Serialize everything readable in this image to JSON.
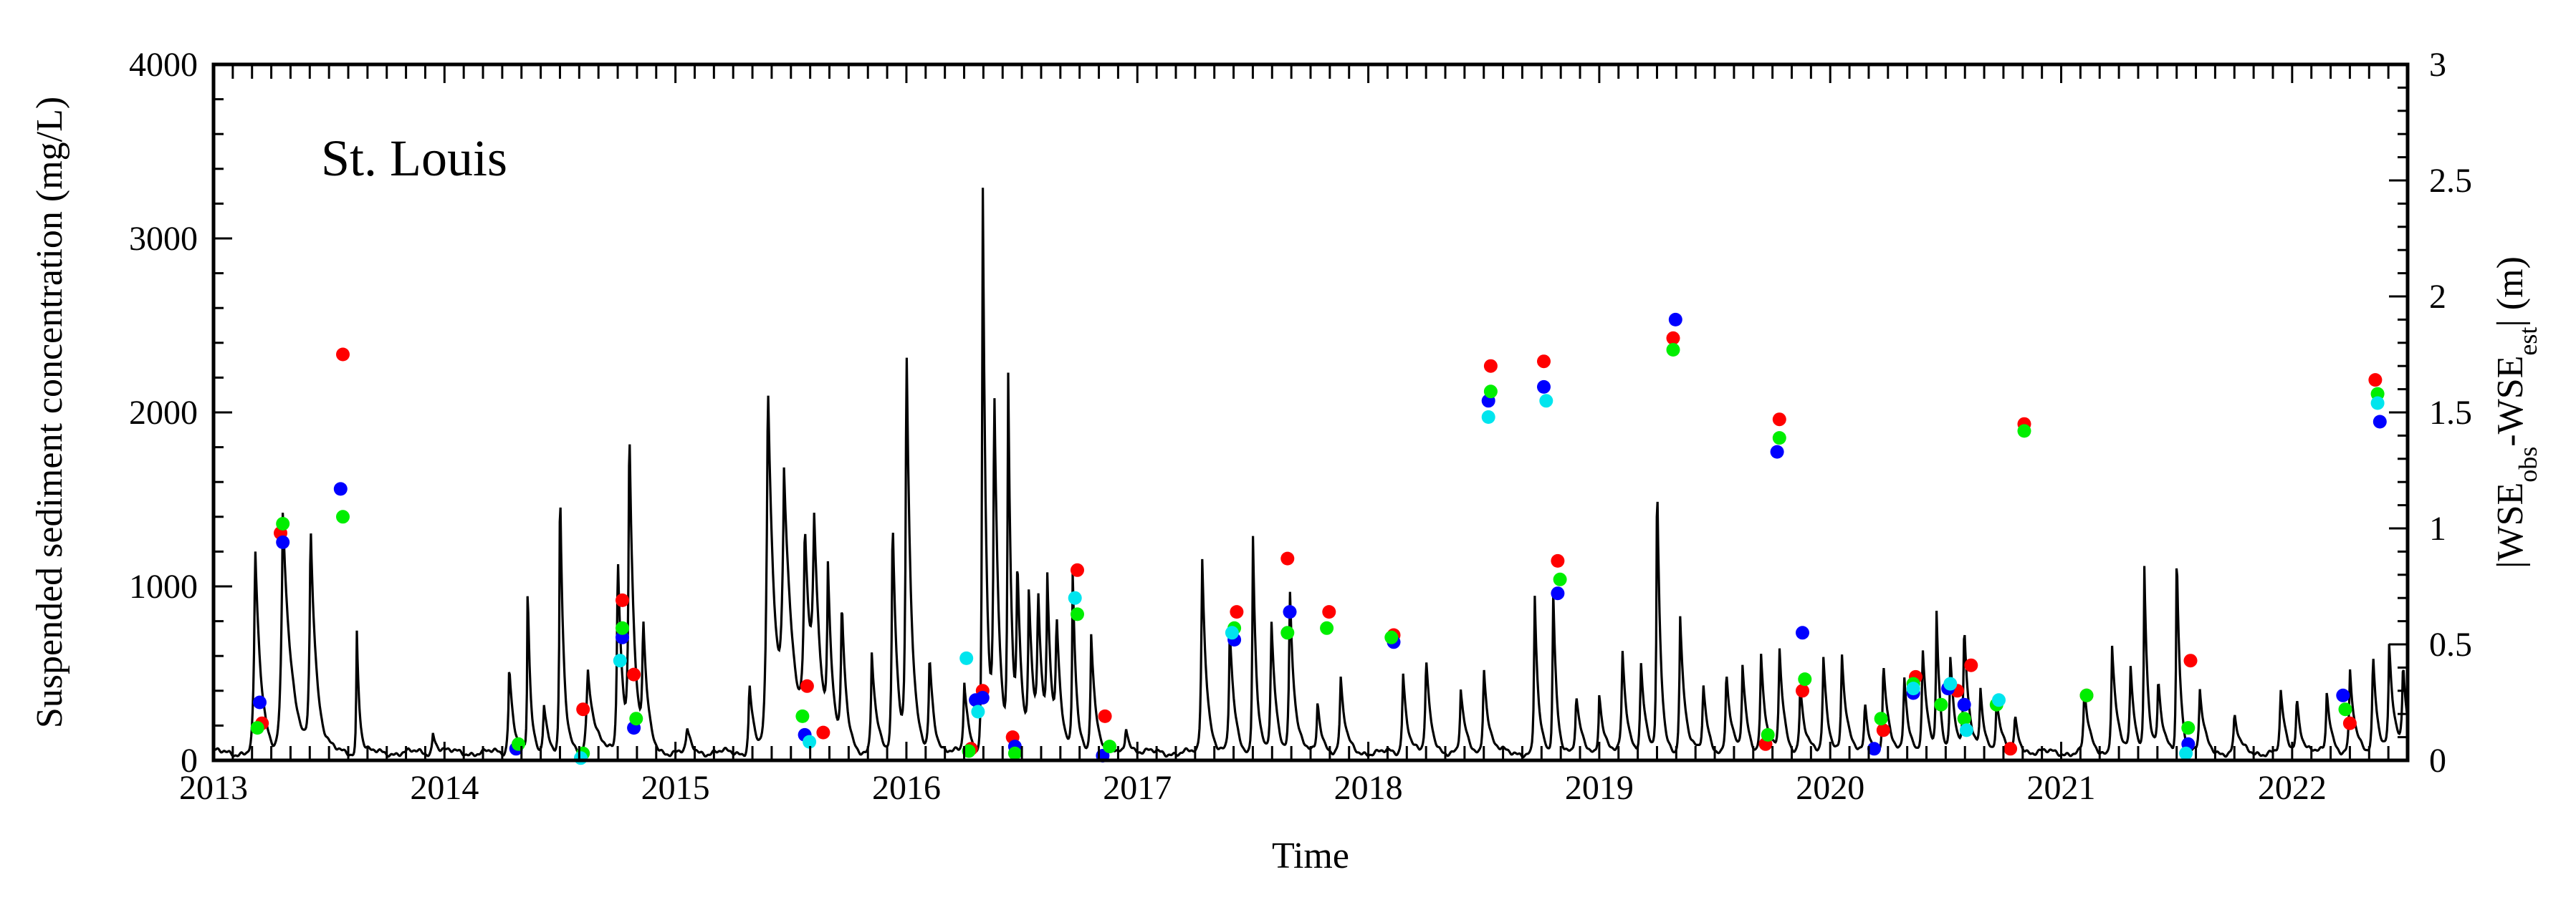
{
  "chart_data": {
    "type": "line",
    "title": "",
    "annotation": "St. Louis",
    "xlabel": "Time",
    "ylabel_left": "Suspended sediment concentration (mg/L)",
    "ylabel_right_parts": [
      "|WSE",
      "obs",
      "-WSE",
      "est",
      "| (m)"
    ],
    "xlim": [
      2013.0,
      2022.5
    ],
    "ylim_left": [
      0,
      4000
    ],
    "ylim_right": [
      0,
      3
    ],
    "x_ticks": [
      2013,
      2014,
      2015,
      2016,
      2017,
      2018,
      2019,
      2020,
      2021,
      2022
    ],
    "x_tick_labels": [
      "2013",
      "2014",
      "2015",
      "2016",
      "2017",
      "2018",
      "2019",
      "2020",
      "2021",
      "2022"
    ],
    "y_left_ticks": [
      0,
      1000,
      2000,
      3000,
      4000
    ],
    "y_left_tick_labels": [
      "0",
      "1000",
      "2000",
      "3000",
      "4000"
    ],
    "y_right_ticks": [
      0,
      0.5,
      1,
      1.5,
      2,
      2.5,
      3
    ],
    "y_right_tick_labels": [
      "0",
      "0.5",
      "1",
      "1.5",
      "2",
      "2.5",
      "3"
    ],
    "grid": false,
    "colors": {
      "line": "#000000",
      "red": "#ff0000",
      "blue": "#0000ff",
      "green": "#00ee00",
      "cyan": "#00e5ee"
    },
    "ssc_series": {
      "peaks": [
        [
          2013.18,
          1190,
          0.025
        ],
        [
          2013.3,
          1400,
          0.035
        ],
        [
          2013.42,
          1310,
          0.025
        ],
        [
          2013.62,
          730,
          0.012
        ],
        [
          2013.95,
          120,
          0.02
        ],
        [
          2014.28,
          520,
          0.02
        ],
        [
          2014.36,
          980,
          0.012
        ],
        [
          2014.43,
          300,
          0.02
        ],
        [
          2014.5,
          1610,
          0.015
        ],
        [
          2014.62,
          500,
          0.03
        ],
        [
          2014.75,
          1180,
          0.02
        ],
        [
          2014.8,
          1890,
          0.02
        ],
        [
          2014.86,
          700,
          0.02
        ],
        [
          2015.05,
          130,
          0.02
        ],
        [
          2015.32,
          420,
          0.02
        ],
        [
          2015.4,
          2160,
          0.03
        ],
        [
          2015.47,
          1450,
          0.04
        ],
        [
          2015.56,
          1150,
          0.03
        ],
        [
          2015.6,
          1050,
          0.03
        ],
        [
          2015.66,
          900,
          0.02
        ],
        [
          2015.72,
          800,
          0.02
        ],
        [
          2015.85,
          580,
          0.02
        ],
        [
          2015.94,
          1390,
          0.02
        ],
        [
          2016.0,
          2370,
          0.02
        ],
        [
          2016.1,
          560,
          0.02
        ],
        [
          2016.25,
          420,
          0.02
        ],
        [
          2016.33,
          3450,
          0.015
        ],
        [
          2016.38,
          2040,
          0.02
        ],
        [
          2016.44,
          2190,
          0.015
        ],
        [
          2016.48,
          1000,
          0.02
        ],
        [
          2016.53,
          870,
          0.02
        ],
        [
          2016.57,
          850,
          0.02
        ],
        [
          2016.61,
          900,
          0.02
        ],
        [
          2016.65,
          700,
          0.02
        ],
        [
          2016.72,
          1030,
          0.015
        ],
        [
          2016.8,
          700,
          0.02
        ],
        [
          2016.95,
          160,
          0.02
        ],
        [
          2017.28,
          1170,
          0.02
        ],
        [
          2017.4,
          720,
          0.02
        ],
        [
          2017.5,
          1310,
          0.015
        ],
        [
          2017.58,
          760,
          0.02
        ],
        [
          2017.66,
          960,
          0.02
        ],
        [
          2017.78,
          300,
          0.02
        ],
        [
          2017.88,
          430,
          0.02
        ],
        [
          2018.15,
          480,
          0.02
        ],
        [
          2018.25,
          540,
          0.02
        ],
        [
          2018.4,
          360,
          0.02
        ],
        [
          2018.5,
          520,
          0.02
        ],
        [
          2018.72,
          950,
          0.015
        ],
        [
          2018.8,
          980,
          0.015
        ],
        [
          2018.9,
          330,
          0.02
        ],
        [
          2019.0,
          360,
          0.02
        ],
        [
          2019.1,
          590,
          0.02
        ],
        [
          2019.18,
          540,
          0.02
        ],
        [
          2019.25,
          1620,
          0.015
        ],
        [
          2019.35,
          800,
          0.02
        ],
        [
          2019.45,
          400,
          0.02
        ],
        [
          2019.55,
          480,
          0.02
        ],
        [
          2019.62,
          500,
          0.02
        ],
        [
          2019.7,
          570,
          0.02
        ],
        [
          2019.78,
          600,
          0.02
        ],
        [
          2019.87,
          400,
          0.02
        ],
        [
          2019.97,
          560,
          0.02
        ],
        [
          2020.05,
          580,
          0.02
        ],
        [
          2020.15,
          300,
          0.02
        ],
        [
          2020.23,
          520,
          0.02
        ],
        [
          2020.32,
          460,
          0.02
        ],
        [
          2020.4,
          600,
          0.02
        ],
        [
          2020.46,
          800,
          0.015
        ],
        [
          2020.52,
          560,
          0.02
        ],
        [
          2020.58,
          700,
          0.02
        ],
        [
          2020.65,
          360,
          0.02
        ],
        [
          2020.72,
          320,
          0.02
        ],
        [
          2020.8,
          200,
          0.02
        ],
        [
          2021.1,
          380,
          0.02
        ],
        [
          2021.22,
          640,
          0.02
        ],
        [
          2021.3,
          480,
          0.02
        ],
        [
          2021.36,
          1060,
          0.015
        ],
        [
          2021.42,
          400,
          0.02
        ],
        [
          2021.5,
          1200,
          0.015
        ],
        [
          2021.6,
          360,
          0.02
        ],
        [
          2021.75,
          220,
          0.02
        ],
        [
          2021.95,
          350,
          0.02
        ],
        [
          2022.02,
          320,
          0.02
        ],
        [
          2022.15,
          360,
          0.02
        ],
        [
          2022.25,
          480,
          0.02
        ],
        [
          2022.35,
          580,
          0.02
        ],
        [
          2022.42,
          620,
          0.02
        ],
        [
          2022.48,
          500,
          0.02
        ]
      ]
    },
    "series": [
      {
        "color_key": "red",
        "points": [
          [
            2013.21,
            0.16
          ],
          [
            2013.29,
            0.98
          ],
          [
            2013.56,
            1.75
          ],
          [
            2014.6,
            0.22
          ],
          [
            2014.77,
            0.69
          ],
          [
            2014.82,
            0.37
          ],
          [
            2015.57,
            0.32
          ],
          [
            2015.64,
            0.12
          ],
          [
            2016.28,
            0.05
          ],
          [
            2016.33,
            0.3
          ],
          [
            2016.46,
            0.1
          ],
          [
            2016.74,
            0.82
          ],
          [
            2016.86,
            0.19
          ],
          [
            2017.43,
            0.64
          ],
          [
            2017.65,
            0.87
          ],
          [
            2017.83,
            0.64
          ],
          [
            2018.11,
            0.54
          ],
          [
            2018.53,
            1.7
          ],
          [
            2018.76,
            1.72
          ],
          [
            2018.82,
            0.86
          ],
          [
            2019.32,
            1.82
          ],
          [
            2019.72,
            0.07
          ],
          [
            2019.78,
            1.47
          ],
          [
            2019.88,
            0.3
          ],
          [
            2020.23,
            0.13
          ],
          [
            2020.37,
            0.36
          ],
          [
            2020.55,
            0.3
          ],
          [
            2020.61,
            0.41
          ],
          [
            2020.78,
            0.05
          ],
          [
            2020.84,
            1.45
          ],
          [
            2021.11,
            0.28
          ],
          [
            2021.56,
            0.43
          ],
          [
            2022.25,
            0.16
          ],
          [
            2022.36,
            1.64
          ]
        ]
      },
      {
        "color_key": "blue",
        "points": [
          [
            2013.2,
            0.25
          ],
          [
            2013.3,
            0.94
          ],
          [
            2013.55,
            1.17
          ],
          [
            2014.31,
            0.05
          ],
          [
            2014.77,
            0.53
          ],
          [
            2014.82,
            0.14
          ],
          [
            2015.56,
            0.11
          ],
          [
            2016.3,
            0.26
          ],
          [
            2016.33,
            0.27
          ],
          [
            2016.47,
            0.06
          ],
          [
            2016.85,
            0.02
          ],
          [
            2017.42,
            0.52
          ],
          [
            2017.66,
            0.64
          ],
          [
            2018.11,
            0.51
          ],
          [
            2018.52,
            1.55
          ],
          [
            2018.76,
            1.61
          ],
          [
            2018.82,
            0.72
          ],
          [
            2019.33,
            1.9
          ],
          [
            2019.77,
            1.33
          ],
          [
            2019.88,
            0.55
          ],
          [
            2020.19,
            0.05
          ],
          [
            2020.36,
            0.29
          ],
          [
            2020.51,
            0.31
          ],
          [
            2020.58,
            0.24
          ],
          [
            2021.55,
            0.07
          ],
          [
            2022.22,
            0.28
          ],
          [
            2022.38,
            1.46
          ]
        ]
      },
      {
        "color_key": "green",
        "points": [
          [
            2013.19,
            0.14
          ],
          [
            2013.3,
            1.02
          ],
          [
            2013.56,
            1.05
          ],
          [
            2014.32,
            0.07
          ],
          [
            2014.6,
            0.03
          ],
          [
            2014.77,
            0.57
          ],
          [
            2014.83,
            0.18
          ],
          [
            2015.55,
            0.19
          ],
          [
            2016.27,
            0.04
          ],
          [
            2016.47,
            0.03
          ],
          [
            2016.74,
            0.63
          ],
          [
            2016.88,
            0.06
          ],
          [
            2017.42,
            0.57
          ],
          [
            2017.65,
            0.55
          ],
          [
            2017.82,
            0.57
          ],
          [
            2018.1,
            0.53
          ],
          [
            2018.53,
            1.59
          ],
          [
            2018.83,
            0.78
          ],
          [
            2019.32,
            1.77
          ],
          [
            2019.73,
            0.11
          ],
          [
            2019.78,
            1.39
          ],
          [
            2019.89,
            0.35
          ],
          [
            2020.22,
            0.18
          ],
          [
            2020.36,
            0.33
          ],
          [
            2020.48,
            0.24
          ],
          [
            2020.58,
            0.18
          ],
          [
            2020.72,
            0.24
          ],
          [
            2020.84,
            1.42
          ],
          [
            2021.11,
            0.28
          ],
          [
            2021.55,
            0.14
          ],
          [
            2022.23,
            0.22
          ],
          [
            2022.37,
            1.58
          ]
        ]
      },
      {
        "color_key": "cyan",
        "points": [
          [
            2014.59,
            0.01
          ],
          [
            2014.76,
            0.43
          ],
          [
            2015.58,
            0.08
          ],
          [
            2016.26,
            0.44
          ],
          [
            2016.31,
            0.21
          ],
          [
            2016.73,
            0.7
          ],
          [
            2017.41,
            0.55
          ],
          [
            2018.52,
            1.48
          ],
          [
            2018.77,
            1.55
          ],
          [
            2020.36,
            0.31
          ],
          [
            2020.52,
            0.33
          ],
          [
            2020.59,
            0.13
          ],
          [
            2020.73,
            0.26
          ],
          [
            2021.54,
            0.03
          ],
          [
            2022.37,
            1.54
          ]
        ]
      }
    ]
  }
}
